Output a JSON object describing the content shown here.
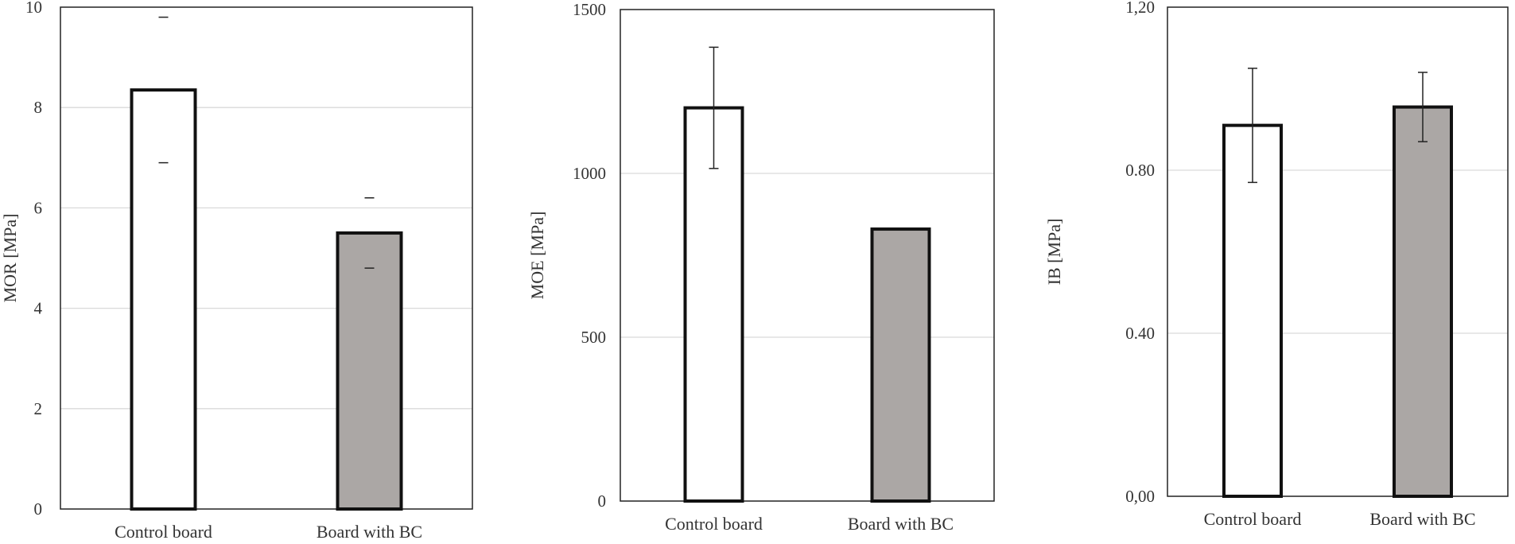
{
  "chart_data": [
    {
      "type": "bar",
      "ylabel": "MOR [MPa]",
      "categories": [
        "Control board",
        "Board with BC"
      ],
      "values": [
        8.35,
        5.5
      ],
      "error": [
        1.45,
        0.7
      ],
      "colors": [
        "#ffffff",
        "#aba7a5"
      ],
      "ylim": [
        0,
        10
      ],
      "yticks": [
        "0",
        "2",
        "4",
        "6",
        "8",
        "10"
      ],
      "ytick_values": [
        0,
        2,
        4,
        6,
        8,
        10
      ],
      "error_style": "caps-only",
      "grid": true,
      "legend": "none"
    },
    {
      "type": "bar",
      "ylabel": "MOE [MPa]",
      "categories": [
        "Control board",
        "Board with BC"
      ],
      "values": [
        1200,
        830
      ],
      "error": [
        185,
        0
      ],
      "colors": [
        "#ffffff",
        "#aba7a5"
      ],
      "ylim": [
        0,
        1500
      ],
      "yticks": [
        "0",
        "500",
        "1000",
        "1500"
      ],
      "ytick_values": [
        0,
        500,
        1000,
        1500
      ],
      "error_style": "full",
      "grid": true,
      "legend": "none"
    },
    {
      "type": "bar",
      "ylabel": "IB [MPa]",
      "categories": [
        "Control board",
        "Board with BC"
      ],
      "values": [
        0.91,
        0.955
      ],
      "error": [
        0.14,
        0.085
      ],
      "colors": [
        "#ffffff",
        "#aba7a5"
      ],
      "ylim": [
        0,
        1.2
      ],
      "yticks": [
        "0,00",
        "0.40",
        "0.80",
        "1,20"
      ],
      "ytick_values": [
        0,
        0.4,
        0.8,
        1.2
      ],
      "error_style": "full",
      "grid": true,
      "legend": "none"
    }
  ]
}
